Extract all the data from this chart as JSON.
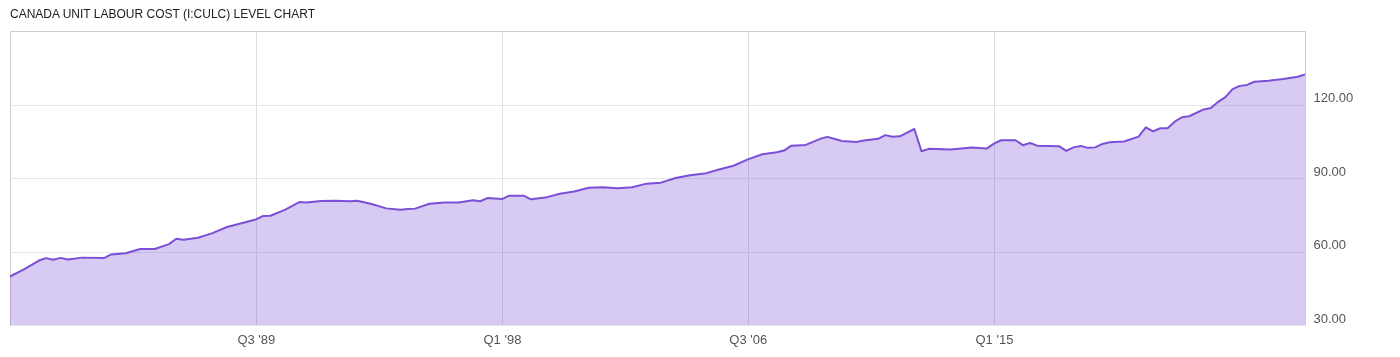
{
  "chart_data": {
    "type": "area",
    "title": "CANADA UNIT LABOUR COST (I:CULC) LEVEL CHART",
    "x": [
      "1981-01",
      "1981-07",
      "1982-01",
      "1982-04",
      "1982-07",
      "1982-10",
      "1983-01",
      "1983-07",
      "1984-04",
      "1984-07",
      "1985-01",
      "1985-07",
      "1986-01",
      "1986-07",
      "1986-10",
      "1987-01",
      "1987-07",
      "1988-01",
      "1988-07",
      "1989-01",
      "1989-07",
      "1989-10",
      "1990-01",
      "1990-07",
      "1991-01",
      "1991-04",
      "1991-10",
      "1992-04",
      "1992-10",
      "1993-01",
      "1993-07",
      "1994-01",
      "1994-07",
      "1994-10",
      "1995-01",
      "1995-07",
      "1996-01",
      "1996-07",
      "1997-01",
      "1997-04",
      "1997-07",
      "1998-01",
      "1998-04",
      "1998-10",
      "1999-01",
      "1999-07",
      "2000-01",
      "2000-07",
      "2001-01",
      "2001-07",
      "2002-01",
      "2002-07",
      "2003-01",
      "2003-07",
      "2004-01",
      "2004-07",
      "2005-01",
      "2005-07",
      "2006-01",
      "2006-07",
      "2007-01",
      "2007-07",
      "2007-10",
      "2008-01",
      "2008-07",
      "2009-01",
      "2009-04",
      "2009-10",
      "2010-04",
      "2010-07",
      "2011-01",
      "2011-04",
      "2011-07",
      "2011-10",
      "2012-04",
      "2012-07",
      "2012-10",
      "2013-07",
      "2014-04",
      "2014-10",
      "2015-01",
      "2015-04",
      "2015-10",
      "2016-01",
      "2016-04",
      "2016-07",
      "2017-04",
      "2017-07",
      "2017-10",
      "2018-01",
      "2018-04",
      "2018-07",
      "2018-10",
      "2019-01",
      "2019-07",
      "2020-01",
      "2020-04",
      "2020-07",
      "2020-10",
      "2021-01",
      "2021-04",
      "2021-07",
      "2021-10",
      "2022-04",
      "2022-07",
      "2022-10",
      "2023-01",
      "2023-04",
      "2023-07",
      "2023-10",
      "2024-01",
      "2024-07",
      "2025-01",
      "2025-07",
      "2025-10"
    ],
    "series": [
      {
        "color": "#7b4fd6",
        "values": [
          49.8,
          52.8,
          56.3,
          57.3,
          56.6,
          57.4,
          56.7,
          57.5,
          57.3,
          58.8,
          59.3,
          61.0,
          61.0,
          63.0,
          65.2,
          64.8,
          65.6,
          67.5,
          70.0,
          71.5,
          73.1,
          74.5,
          74.6,
          77.0,
          80.2,
          80.0,
          80.6,
          80.7,
          80.5,
          80.7,
          79.4,
          77.6,
          77.0,
          77.3,
          77.5,
          79.5,
          80.0,
          80.0,
          80.9,
          80.5,
          81.8,
          81.4,
          82.8,
          82.8,
          81.3,
          82.0,
          83.6,
          84.5,
          86.0,
          86.2,
          85.8,
          86.2,
          87.7,
          88.1,
          90.0,
          91.1,
          91.8,
          93.5,
          95.0,
          97.6,
          99.7,
          100.5,
          101.2,
          103.2,
          103.5,
          106.0,
          106.8,
          105.1,
          104.7,
          105.3,
          106.0,
          107.5,
          106.8,
          107.0,
          110.0,
          100.9,
          101.9,
          101.6,
          102.4,
          102.0,
          104.0,
          105.4,
          105.4,
          103.4,
          104.3,
          103.2,
          103.0,
          101.1,
          102.5,
          103.1,
          102.3,
          102.5,
          103.9,
          104.6,
          104.9,
          106.9,
          110.7,
          109.0,
          110.3,
          110.3,
          113.0,
          114.8,
          115.2,
          118.0,
          118.6,
          121.1,
          123.0,
          126.3,
          127.6,
          128.0,
          129.3,
          129.7,
          130.4,
          131.3,
          132.3
        ]
      }
    ],
    "xlim": [
      "1981-01",
      "2025-10"
    ],
    "xticks": [
      {
        "value": "1989-07",
        "label": "Q3 '89"
      },
      {
        "value": "1998-01",
        "label": "Q1 '98"
      },
      {
        "value": "2006-07",
        "label": "Q3 '06"
      },
      {
        "value": "2015-01",
        "label": "Q1 '15"
      }
    ],
    "ylim": [
      30,
      150
    ],
    "yticks": [
      {
        "value": 30,
        "label": "30.00"
      },
      {
        "value": 60,
        "label": "60.00"
      },
      {
        "value": 90,
        "label": "90.00"
      },
      {
        "value": 120,
        "label": "120.00"
      }
    ],
    "grid": true
  }
}
